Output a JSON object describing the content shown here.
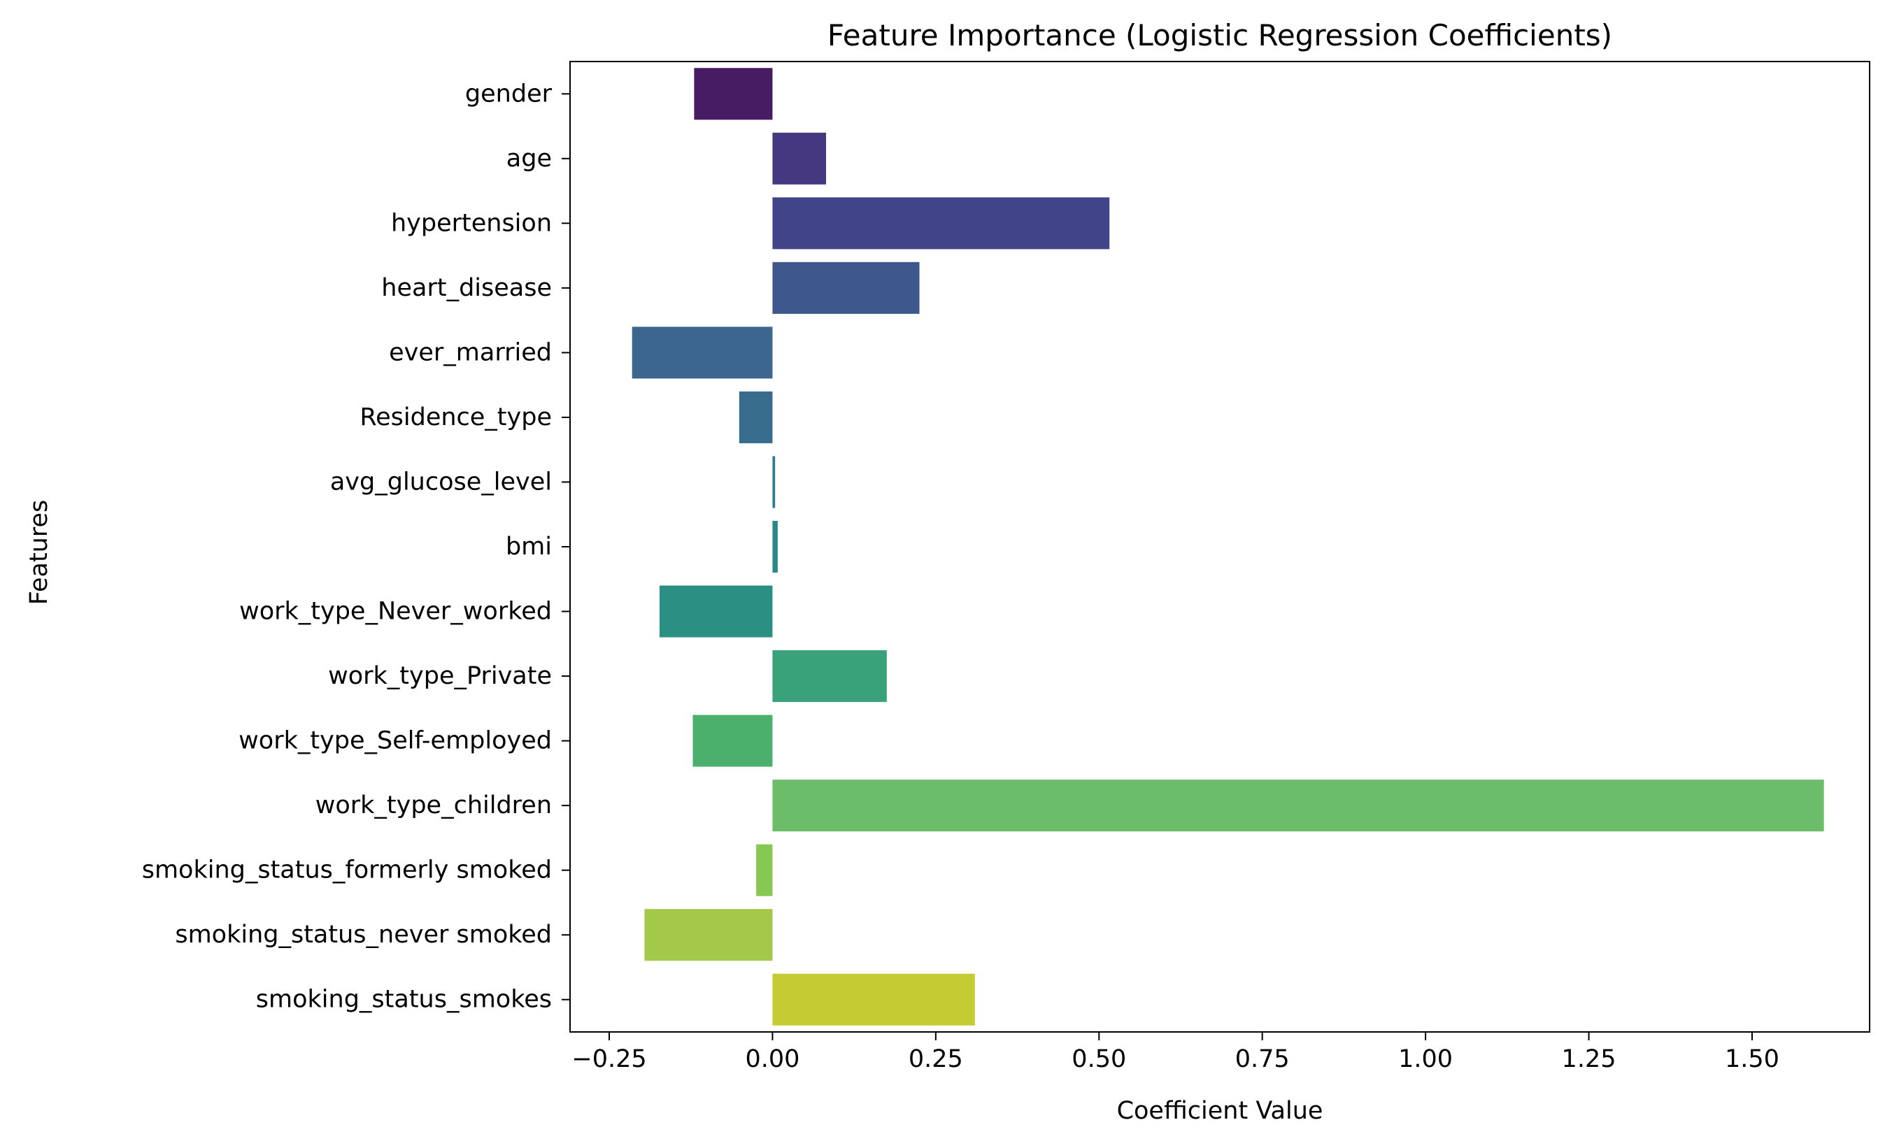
{
  "chart_data": {
    "type": "bar",
    "orientation": "horizontal",
    "title": "Feature Importance (Logistic Regression Coefficients)",
    "xlabel": "Coefficient Value",
    "ylabel": "Features",
    "categories": [
      "gender",
      "age",
      "hypertension",
      "heart_disease",
      "ever_married",
      "Residence_type",
      "avg_glucose_level",
      "bmi",
      "work_type_Never_worked",
      "work_type_Private",
      "work_type_Self-employed",
      "work_type_children",
      "smoking_status_formerly smoked",
      "smoking_status_never smoked",
      "smoking_status_smokes"
    ],
    "values": [
      -0.12,
      0.082,
      0.516,
      0.225,
      -0.215,
      -0.051,
      0.004,
      0.008,
      -0.173,
      0.175,
      -0.122,
      1.61,
      -0.025,
      -0.196,
      0.31
    ],
    "xlim": [
      -0.31,
      1.68
    ],
    "xticks": [
      -0.25,
      0.0,
      0.25,
      0.5,
      0.75,
      1.0,
      1.25,
      1.5
    ],
    "xtick_labels": [
      "−0.25",
      "0.00",
      "0.25",
      "0.50",
      "0.75",
      "1.00",
      "1.25",
      "1.50"
    ],
    "colors": [
      "#471c63",
      "#453780",
      "#414489",
      "#3e578c",
      "#3d668e",
      "#376c8c",
      "#2e7c8e",
      "#2a888c",
      "#2c8f84",
      "#39a27a",
      "#4cb06d",
      "#6bbd6a",
      "#86c851",
      "#a3c84a",
      "#c4cb33"
    ],
    "grid": false,
    "legend": "none"
  }
}
